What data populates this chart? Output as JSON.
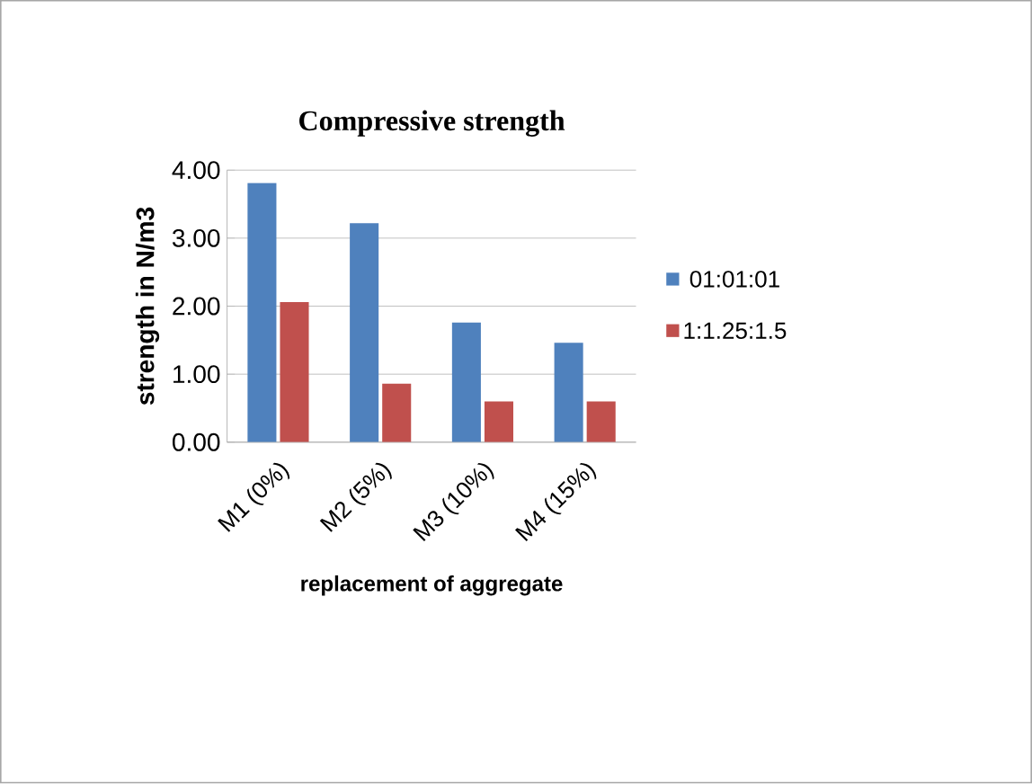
{
  "chart_data": {
    "type": "bar",
    "title": "Compressive strength",
    "xlabel": "replacement of aggregate",
    "ylabel": "strength in N/m3",
    "categories": [
      "M1 (0%)",
      "M2 (5%)",
      "M3 (10%)",
      "M4 (15%)"
    ],
    "series": [
      {
        "name": "01:01:01",
        "color": "#4f81bd",
        "values": [
          3.81,
          3.22,
          1.76,
          1.46
        ]
      },
      {
        "name": "1:1.25:1.5",
        "color": "#c0504d",
        "values": [
          2.06,
          0.86,
          0.6,
          0.6
        ]
      }
    ],
    "ylim": [
      0,
      4
    ],
    "yticks": [
      {
        "value": 0,
        "label": "0.00"
      },
      {
        "value": 1,
        "label": "1.00"
      },
      {
        "value": 2,
        "label": "2.00"
      },
      {
        "value": 3,
        "label": "3.00"
      },
      {
        "value": 4,
        "label": "4.00"
      }
    ],
    "grid": "y",
    "legend": "right"
  }
}
